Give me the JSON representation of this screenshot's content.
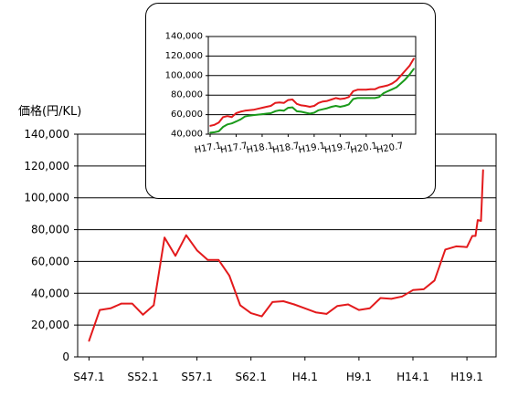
{
  "chart_data": [
    {
      "type": "line",
      "title": "",
      "ylabel": "価格(円/KL)",
      "xlabel": "",
      "categories": [
        "S47.1",
        "S52.1",
        "S57.1",
        "S62.1",
        "H4.1",
        "H9.1",
        "H14.1",
        "H19.1"
      ],
      "x_unit": "year",
      "x_categories_years": [
        1972,
        1977,
        1982,
        1987,
        1992,
        1997,
        2002,
        2007
      ],
      "ylim": [
        0,
        140000
      ],
      "yticks": [
        "0",
        "20,000",
        "40,000",
        "60,000",
        "80,000",
        "100,000",
        "120,000",
        "140,000"
      ],
      "grid": true,
      "series": [
        {
          "color": "#e31a1c",
          "x": [
            1972,
            1973,
            1974,
            1975,
            1976,
            1977,
            1978,
            1979,
            1980,
            1981,
            1982,
            1983,
            1984,
            1985,
            1986,
            1987,
            1988,
            1989,
            1990,
            1991,
            1992,
            1993,
            1994,
            1995,
            1996,
            1997,
            1998,
            1999,
            2000,
            2001,
            2002,
            2003,
            2004,
            2005,
            2006,
            2007,
            2007.5,
            2007.8,
            2008,
            2008.3,
            2008.5
          ],
          "values": [
            10000,
            29500,
            30500,
            33500,
            33500,
            26500,
            32500,
            75000,
            63500,
            76500,
            67000,
            61000,
            61000,
            51000,
            32500,
            27500,
            25500,
            34500,
            35000,
            33000,
            30500,
            28000,
            27000,
            32000,
            33000,
            29500,
            30500,
            37000,
            36500,
            38000,
            42000,
            42500,
            48000,
            67500,
            69500,
            69000,
            76000,
            76000,
            86000,
            85500,
            117500
          ]
        }
      ]
    },
    {
      "type": "line",
      "title": "",
      "categories": [
        "H17.1",
        "H17.7",
        "H18.1",
        "H18.7",
        "H19.1",
        "H19.7",
        "H20.1",
        "H20.7"
      ],
      "ylim": [
        40000,
        140000
      ],
      "yticks": [
        "40,000",
        "60,000",
        "80,000",
        "100,000",
        "120,000",
        "140,000"
      ],
      "grid": true,
      "series": [
        {
          "color": "#e31a1c",
          "x": [
            0,
            1,
            2,
            3,
            4,
            5,
            6,
            7,
            8,
            9,
            10,
            11,
            12,
            13,
            14,
            15,
            16,
            17,
            18,
            19,
            20,
            21,
            22,
            23,
            24,
            25,
            26,
            27,
            28,
            29,
            30,
            31,
            32,
            33,
            34,
            35,
            36,
            37,
            38,
            39,
            40,
            41,
            42,
            43,
            44,
            45,
            46,
            47
          ],
          "values": [
            48500,
            49500,
            52000,
            57500,
            58500,
            57500,
            61500,
            63000,
            64000,
            64500,
            65000,
            66000,
            67000,
            68000,
            69000,
            72000,
            72500,
            72000,
            75000,
            75500,
            71000,
            69500,
            69000,
            68000,
            69000,
            72000,
            73500,
            74000,
            75500,
            77000,
            76000,
            76500,
            78000,
            84000,
            85500,
            85500,
            85500,
            86000,
            86000,
            88000,
            89000,
            90000,
            92000,
            95000,
            100000,
            105000,
            110000,
            117500
          ]
        },
        {
          "color": "#1a9a1a",
          "x": [
            0,
            1,
            2,
            3,
            4,
            5,
            6,
            7,
            8,
            9,
            10,
            11,
            12,
            13,
            14,
            15,
            16,
            17,
            18,
            19,
            20,
            21,
            22,
            23,
            24,
            25,
            26,
            27,
            28,
            29,
            30,
            31,
            32,
            33,
            34,
            35,
            36,
            37,
            38,
            39,
            40,
            41,
            42,
            43,
            44,
            45,
            46,
            47
          ],
          "values": [
            41500,
            42000,
            43000,
            47500,
            50000,
            51000,
            53000,
            55000,
            58000,
            59000,
            59500,
            60000,
            60500,
            61000,
            61500,
            63500,
            64500,
            64000,
            67000,
            67500,
            63500,
            63000,
            62000,
            61000,
            62000,
            64500,
            65500,
            66500,
            68000,
            69000,
            68000,
            69000,
            70500,
            76000,
            77000,
            77000,
            77000,
            77000,
            77000,
            78000,
            82000,
            84000,
            86000,
            88000,
            92000,
            96000,
            101000,
            107000
          ]
        }
      ]
    }
  ]
}
